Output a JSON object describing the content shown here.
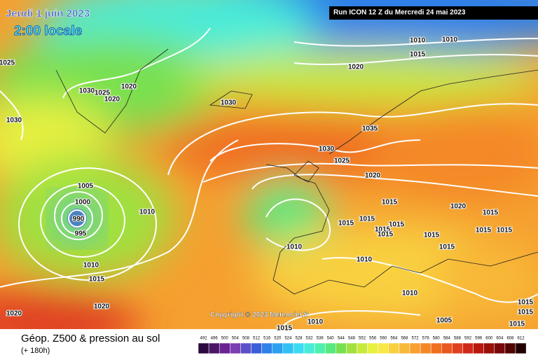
{
  "header": {
    "date": "Jeudi 1 juin 2023",
    "time": "2:00 locale",
    "run": "Run ICON 12 Z du Mercredi 24 mai 2023"
  },
  "isobar_labels": [
    "1025",
    "1030",
    "1030",
    "1025",
    "1020",
    "1020",
    "1030",
    "1010",
    "1010",
    "1015",
    "1020",
    "1035",
    "1030",
    "1025",
    "1020",
    "1005",
    "1000",
    "990",
    "995",
    "1010",
    "1015",
    "1020",
    "1015",
    "1015",
    "1015",
    "1015",
    "1015",
    "1015",
    "1015",
    "1015",
    "1015",
    "1015",
    "1010",
    "1010",
    "1010",
    "1015",
    "1010",
    "1020",
    "1020",
    "1010",
    "1015",
    "1005",
    "1015",
    "1015",
    "1015"
  ],
  "copyright": "Copyright © 2023 Meteociel.fr",
  "footer": {
    "title": "Géop. Z500 & pression au sol",
    "lead": "(+ 180h)"
  },
  "legend": {
    "labels": [
      "492",
      "496",
      "500",
      "504",
      "508",
      "512",
      "516",
      "520",
      "524",
      "528",
      "532",
      "536",
      "540",
      "544",
      "548",
      "552",
      "556",
      "560",
      "564",
      "568",
      "572",
      "576",
      "580",
      "584",
      "588",
      "592",
      "596",
      "600",
      "604",
      "608",
      "612"
    ],
    "colors": [
      "#2b0a3d",
      "#4b1667",
      "#6a2391",
      "#7b3fb1",
      "#5b50c8",
      "#3a5fd8",
      "#2f80e8",
      "#2ea0f0",
      "#32c0f5",
      "#3cdcf0",
      "#48ecd8",
      "#4ef0b0",
      "#58e880",
      "#78e050",
      "#a0e040",
      "#c8ea3c",
      "#e8f040",
      "#f8e848",
      "#f8d040",
      "#f8b838",
      "#f8a030",
      "#f48828",
      "#f07020",
      "#e85820",
      "#e04020",
      "#d02818",
      "#b81810",
      "#981008",
      "#780808",
      "#500404",
      "#200000"
    ]
  }
}
